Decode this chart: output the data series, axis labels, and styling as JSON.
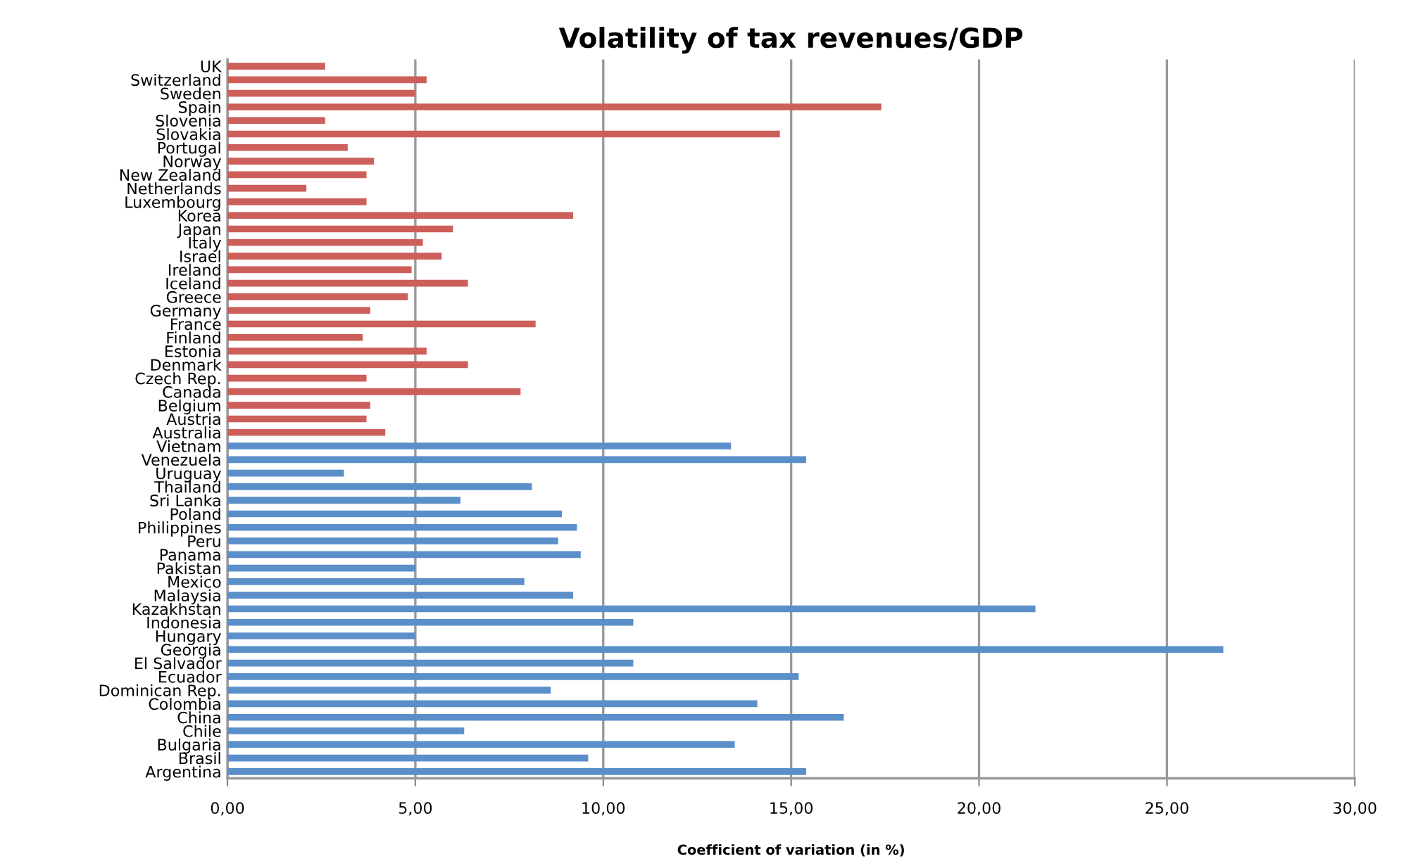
{
  "chart_data": {
    "type": "bar",
    "orientation": "horizontal",
    "title": "Volatility of tax revenues/GDP",
    "xlabel": "Coefficient of variation (in %)",
    "categories": [
      "UK",
      "Switzerland",
      "Sweden",
      "Spain",
      "Slovenia",
      "Slovakia",
      "Portugal",
      "Norway",
      "New Zealand",
      "Netherlands",
      "Luxembourg",
      "Korea",
      "Japan",
      "Italy",
      "Israel",
      "Ireland",
      "Iceland",
      "Greece",
      "Germany",
      "France",
      "Finland",
      "Estonia",
      "Denmark",
      "Czech Rep.",
      "Canada",
      "Belgium",
      "Austria",
      "Australia",
      "Vietnam",
      "Venezuela",
      "Uruguay",
      "Thailand",
      "Sri Lanka",
      "Poland",
      "Philippines",
      "Peru",
      "Panama",
      "Pakistan",
      "Mexico",
      "Malaysia",
      "Kazakhstan",
      "Indonesia",
      "Hungary",
      "Georgia",
      "El Salvador",
      "Ecuador",
      "Dominican Rep.",
      "Colombia",
      "China",
      "Chile",
      "Bulgaria",
      "Brasil",
      "Argentina"
    ],
    "values": [
      2.6,
      5.3,
      5.0,
      17.4,
      2.6,
      14.7,
      3.2,
      3.9,
      3.7,
      2.1,
      3.7,
      9.2,
      6.0,
      5.2,
      5.7,
      4.9,
      6.4,
      4.8,
      3.8,
      8.2,
      3.6,
      5.3,
      6.4,
      3.7,
      7.8,
      3.8,
      3.7,
      4.2,
      13.4,
      15.4,
      3.1,
      8.1,
      6.2,
      8.9,
      9.3,
      8.8,
      9.4,
      5.0,
      7.9,
      9.2,
      21.5,
      10.8,
      5.0,
      26.5,
      10.8,
      15.2,
      8.6,
      14.1,
      16.4,
      6.3,
      13.5,
      9.6,
      15.4
    ],
    "colors": [
      "#cd5f5a",
      "#cd5f5a",
      "#cd5f5a",
      "#cd5f5a",
      "#cd5f5a",
      "#cd5f5a",
      "#cd5f5a",
      "#cd5f5a",
      "#cd5f5a",
      "#cd5f5a",
      "#cd5f5a",
      "#cd5f5a",
      "#cd5f5a",
      "#cd5f5a",
      "#cd5f5a",
      "#cd5f5a",
      "#cd5f5a",
      "#cd5f5a",
      "#cd5f5a",
      "#cd5f5a",
      "#cd5f5a",
      "#cd5f5a",
      "#cd5f5a",
      "#cd5f5a",
      "#cd5f5a",
      "#cd5f5a",
      "#cd5f5a",
      "#cd5f5a",
      "#5b8fc9",
      "#5b8fc9",
      "#5b8fc9",
      "#5b8fc9",
      "#5b8fc9",
      "#5b8fc9",
      "#5b8fc9",
      "#5b8fc9",
      "#5b8fc9",
      "#5b8fc9",
      "#5b8fc9",
      "#5b8fc9",
      "#5b8fc9",
      "#5b8fc9",
      "#5b8fc9",
      "#5b8fc9",
      "#5b8fc9",
      "#5b8fc9",
      "#5b8fc9",
      "#5b8fc9",
      "#5b8fc9",
      "#5b8fc9",
      "#5b8fc9",
      "#5b8fc9",
      "#5b8fc9"
    ],
    "xlim": [
      0,
      30
    ],
    "xticks": [
      {
        "value": 0,
        "label": "0,00"
      },
      {
        "value": 5,
        "label": "5,00"
      },
      {
        "value": 10,
        "label": "10,00"
      },
      {
        "value": 15,
        "label": "15,00"
      },
      {
        "value": 20,
        "label": "20,00"
      },
      {
        "value": 25,
        "label": "25,00"
      },
      {
        "value": 30,
        "label": "30,00"
      }
    ],
    "grid": "x"
  }
}
